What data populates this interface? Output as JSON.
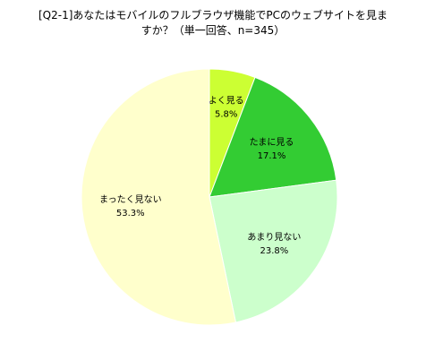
{
  "title_lines": [
    "[Q2-1]あなたはモバイルのフルブラウザ機能でPCのウェブサイトを見ま",
    "すか？（単一回答、n=345）"
  ],
  "chart_data": {
    "type": "pie",
    "title": "[Q2-1]あなたはモバイルのフルブラウザ機能でPCのウェブサイトを見ますか？（単一回答、n=345）",
    "start": "12 o'clock",
    "direction": "clockwise",
    "slices": [
      {
        "label": "よく見る",
        "value": 5.8,
        "value_label": "5.8%",
        "color": "#ccff33"
      },
      {
        "label": "たまに見る",
        "value": 17.1,
        "value_label": "17.1%",
        "color": "#33cc33"
      },
      {
        "label": "あまり見ない",
        "value": 23.8,
        "value_label": "23.8%",
        "color": "#ccffcc"
      },
      {
        "label": "まったく見ない",
        "value": 53.3,
        "value_label": "53.3%",
        "color": "#ffffcc"
      }
    ],
    "legend": "none",
    "grid": false
  }
}
